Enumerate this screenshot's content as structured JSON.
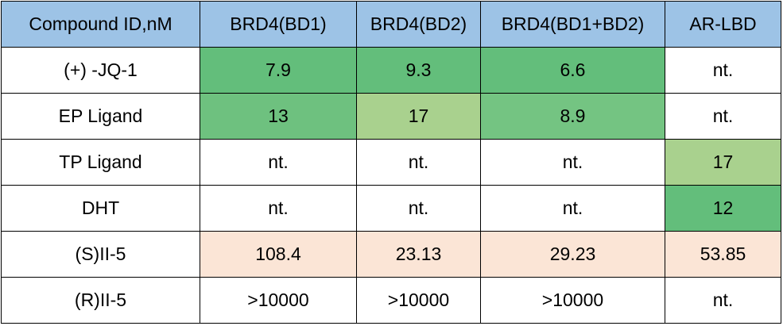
{
  "chart_data": {
    "type": "table",
    "columns": [
      "Compound ID,nM",
      "BRD4(BD1)",
      "BRD4(BD2)",
      "BRD4(BD1+BD2)",
      "AR-LBD"
    ],
    "rows": [
      {
        "compound": "(+)  -JQ-1",
        "cells": [
          "7.9",
          "9.3",
          "6.6",
          "nt."
        ],
        "colors": [
          "#63be7b",
          "#63be7b",
          "#63be7b",
          "#ffffff"
        ]
      },
      {
        "compound": "EP Ligand",
        "cells": [
          "13",
          "17",
          "8.9",
          "nt."
        ],
        "colors": [
          "#6ec17f",
          "#a9d18e",
          "#74c482",
          "#ffffff"
        ]
      },
      {
        "compound": "TP Ligand",
        "cells": [
          "nt.",
          "nt.",
          "nt.",
          "17"
        ],
        "colors": [
          "#ffffff",
          "#ffffff",
          "#ffffff",
          "#a9d18e"
        ]
      },
      {
        "compound": "DHT",
        "cells": [
          "nt.",
          "nt.",
          "nt.",
          "12"
        ],
        "colors": [
          "#ffffff",
          "#ffffff",
          "#ffffff",
          "#63be7b"
        ]
      },
      {
        "compound": "(S)II-5",
        "cells": [
          "108.4",
          "23.13",
          "29.23",
          "53.85"
        ],
        "colors": [
          "#fbe5d6",
          "#fbe5d6",
          "#fbe5d6",
          "#fbe5d6"
        ]
      },
      {
        "compound": "(R)II-5",
        "cells": [
          ">10000",
          ">10000",
          ">10000",
          "nt."
        ],
        "colors": [
          "#ffffff",
          "#ffffff",
          "#ffffff",
          "#ffffff"
        ]
      }
    ],
    "header_color": "#9dc3e6",
    "first_column_color": "#ffffff"
  }
}
